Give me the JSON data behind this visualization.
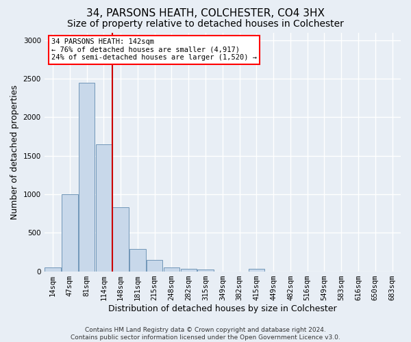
{
  "title1": "34, PARSONS HEATH, COLCHESTER, CO4 3HX",
  "title2": "Size of property relative to detached houses in Colchester",
  "xlabel": "Distribution of detached houses by size in Colchester",
  "ylabel": "Number of detached properties",
  "footnote": "Contains HM Land Registry data © Crown copyright and database right 2024.\nContains public sector information licensed under the Open Government Licence v3.0.",
  "bar_labels": [
    "14sqm",
    "47sqm",
    "81sqm",
    "114sqm",
    "148sqm",
    "181sqm",
    "215sqm",
    "248sqm",
    "282sqm",
    "315sqm",
    "349sqm",
    "382sqm",
    "415sqm",
    "449sqm",
    "482sqm",
    "516sqm",
    "549sqm",
    "583sqm",
    "616sqm",
    "650sqm",
    "683sqm"
  ],
  "bar_values": [
    50,
    1000,
    2450,
    1650,
    830,
    290,
    145,
    50,
    35,
    25,
    0,
    0,
    30,
    0,
    0,
    0,
    0,
    0,
    0,
    0,
    0
  ],
  "bar_color": "#c8d8ea",
  "bar_edge_color": "#7096b8",
  "ylim": [
    0,
    3100
  ],
  "yticks": [
    0,
    500,
    1000,
    1500,
    2000,
    2500,
    3000
  ],
  "property_label": "34 PARSONS HEATH: 142sqm",
  "annotation_line1": "← 76% of detached houses are smaller (4,917)",
  "annotation_line2": "24% of semi-detached houses are larger (1,520) →",
  "vline_color": "#cc0000",
  "vline_position": 3.5,
  "background_color": "#e8eef5",
  "grid_color": "#ffffff",
  "title_fontsize": 11,
  "subtitle_fontsize": 10,
  "axis_label_fontsize": 9,
  "tick_fontsize": 7.5,
  "footnote_fontsize": 6.5
}
